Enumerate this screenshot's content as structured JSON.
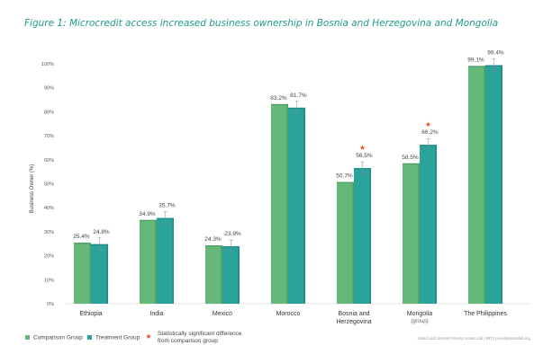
{
  "title": "Figure 1: Microcredit access increased business ownership in Bosnia and Herzegovina and Mongolia",
  "colors": {
    "comparison": "#65b77a",
    "treatment": "#2aa39a",
    "star": "#e8502a",
    "title": "#1e9b8f"
  },
  "chart_data": {
    "type": "bar",
    "ylabel": "Business Owner (%)",
    "ylim": [
      0,
      100
    ],
    "yticks": [
      "0%",
      "10%",
      "20%",
      "30%",
      "40%",
      "50%",
      "60%",
      "70%",
      "80%",
      "90%",
      "100%"
    ],
    "grid": false,
    "legend_position": "bottom-left",
    "categories": [
      {
        "label": "Ethiopia",
        "sub": ""
      },
      {
        "label": "India",
        "sub": ""
      },
      {
        "label": "Mexico",
        "sub": ""
      },
      {
        "label": "Morocco",
        "sub": ""
      },
      {
        "label": "Bosnia and",
        "label2": "Herzegovina",
        "sub": ""
      },
      {
        "label": "Mongolia",
        "sub": "(group)"
      },
      {
        "label": "The Philippines",
        "sub": ""
      }
    ],
    "series": [
      {
        "name": "Comparison Group",
        "values": [
          25.4,
          34.9,
          24.3,
          83.2,
          50.7,
          58.5,
          99.1
        ],
        "labels": [
          "25.4%",
          "34.9%",
          "24.3%",
          "83.2%",
          "50.7%",
          "58.5%",
          "99.1%"
        ]
      },
      {
        "name": "Treatment Group",
        "values": [
          24.8,
          35.7,
          23.9,
          81.7,
          56.5,
          66.2,
          99.4
        ],
        "labels": [
          "24.8%",
          "35.7%",
          "23.9%",
          "81.7%",
          "56.5%",
          "66.2%",
          "99.4%"
        ]
      }
    ],
    "significant": [
      false,
      false,
      false,
      false,
      true,
      true,
      false
    ],
    "star_legend_line1": "Statistically significant difference",
    "star_legend_line2": "from comparison group"
  },
  "source_text": "Abdul Latif Jameel Poverty Action Lab | MIT | povertyactionlab.org"
}
